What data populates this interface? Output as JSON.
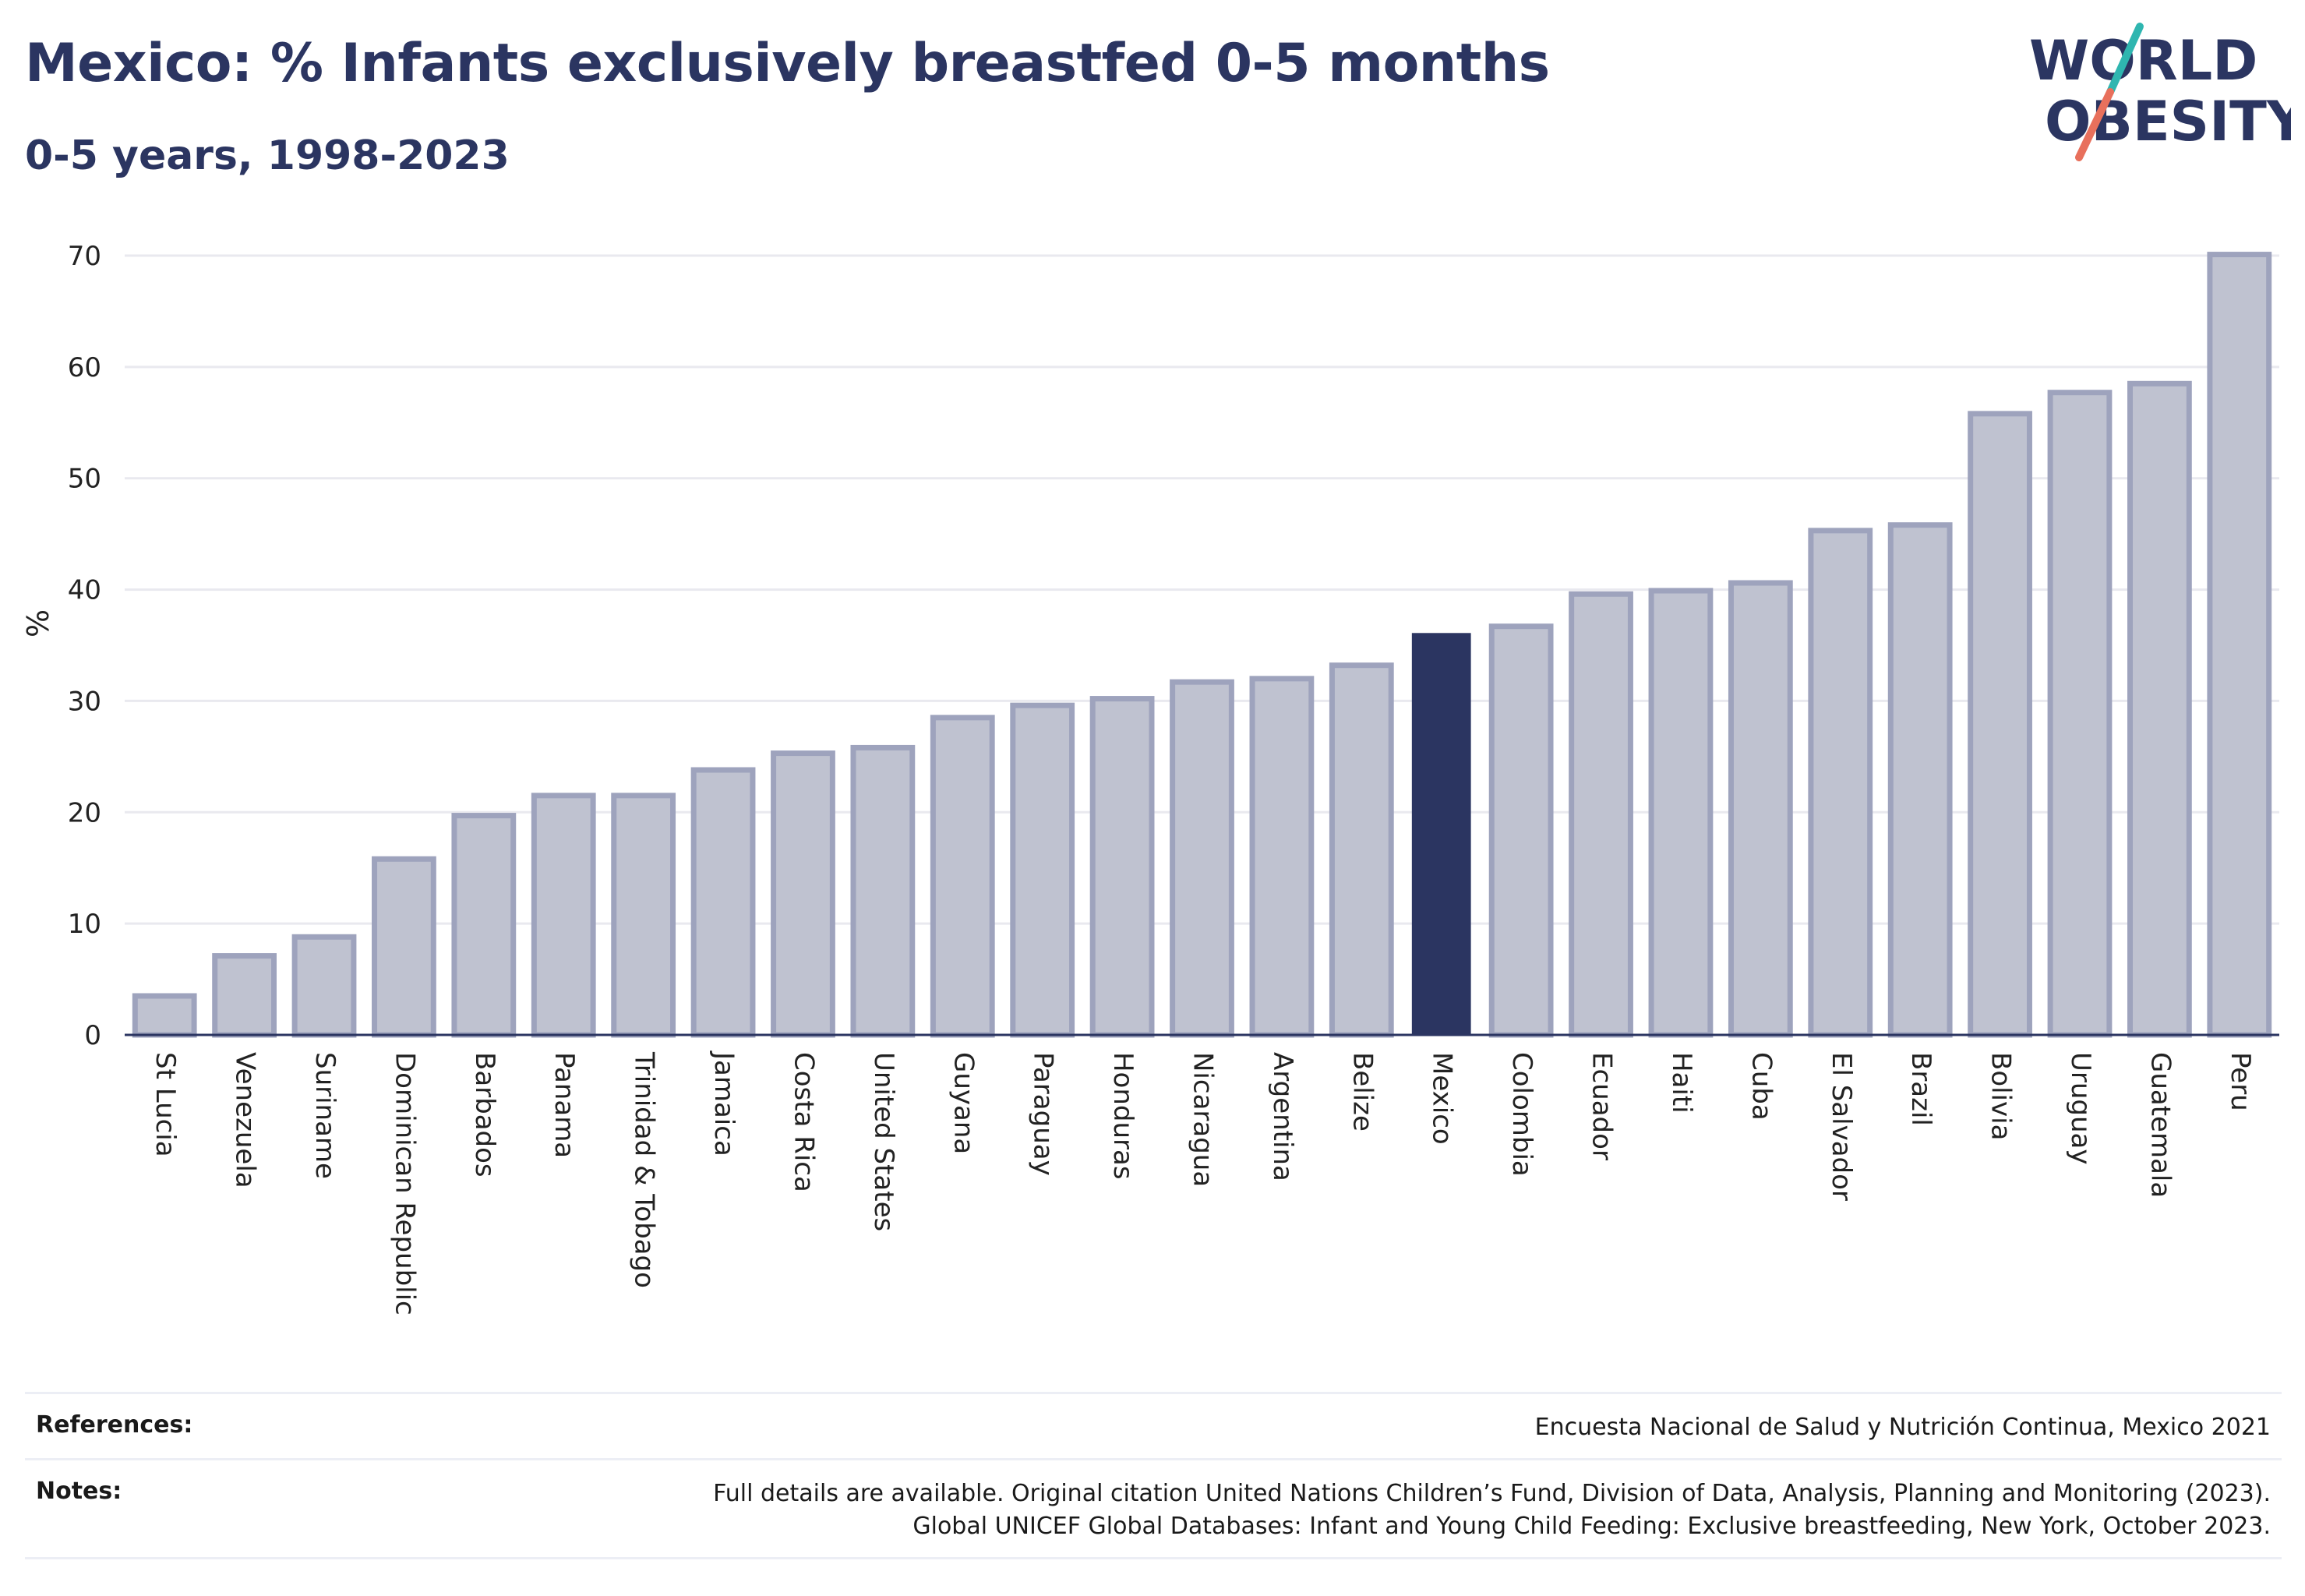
{
  "title": "Mexico: % Infants exclusively breastfed 0-5 months",
  "subtitle": "0-5 years, 1998-2023",
  "logo": {
    "line1": "WORLD",
    "line2": "OBESITY"
  },
  "colors": {
    "title": "#2b3561",
    "bar_fill": "#bfc2d0",
    "bar_stroke": "#9ea3bd",
    "highlight": "#2b3561",
    "grid": "#e9e9ef",
    "logo_teal": "#2fb6b0",
    "logo_coral": "#e8705c"
  },
  "chart_data": {
    "type": "bar",
    "ylabel": "%",
    "ylim": [
      0,
      70
    ],
    "yticks": [
      0,
      10,
      20,
      30,
      40,
      50,
      60,
      70
    ],
    "grid": true,
    "highlight": "Mexico",
    "categories": [
      "St Lucia",
      "Venezuela",
      "Suriname",
      "Dominican Republic",
      "Barbados",
      "Panama",
      "Trinidad & Tobago",
      "Jamaica",
      "Costa Rica",
      "United States",
      "Guyana",
      "Paraguay",
      "Honduras",
      "Nicaragua",
      "Argentina",
      "Belize",
      "Mexico",
      "Colombia",
      "Ecuador",
      "Haiti",
      "Cuba",
      "El Salvador",
      "Brazil",
      "Bolivia",
      "Uruguay",
      "Guatemala",
      "Peru"
    ],
    "values": [
      3.5,
      7.1,
      8.8,
      15.8,
      19.7,
      21.5,
      21.5,
      23.8,
      25.3,
      25.8,
      28.5,
      29.6,
      30.2,
      31.7,
      32.0,
      33.2,
      36.1,
      36.7,
      39.6,
      39.9,
      40.6,
      45.3,
      45.8,
      55.8,
      57.7,
      58.5,
      70.1
    ]
  },
  "footer": {
    "references_label": "References:",
    "references_text": "Encuesta Nacional de Salud y Nutrición Continua, Mexico 2021",
    "notes_label": "Notes:",
    "notes_line1": "Full details are available. Original citation United Nations Children’s Fund, Division of Data, Analysis, Planning and Monitoring (2023).",
    "notes_line2": "Global UNICEF Global Databases: Infant and Young Child Feeding: Exclusive breastfeeding, New York, October 2023."
  }
}
